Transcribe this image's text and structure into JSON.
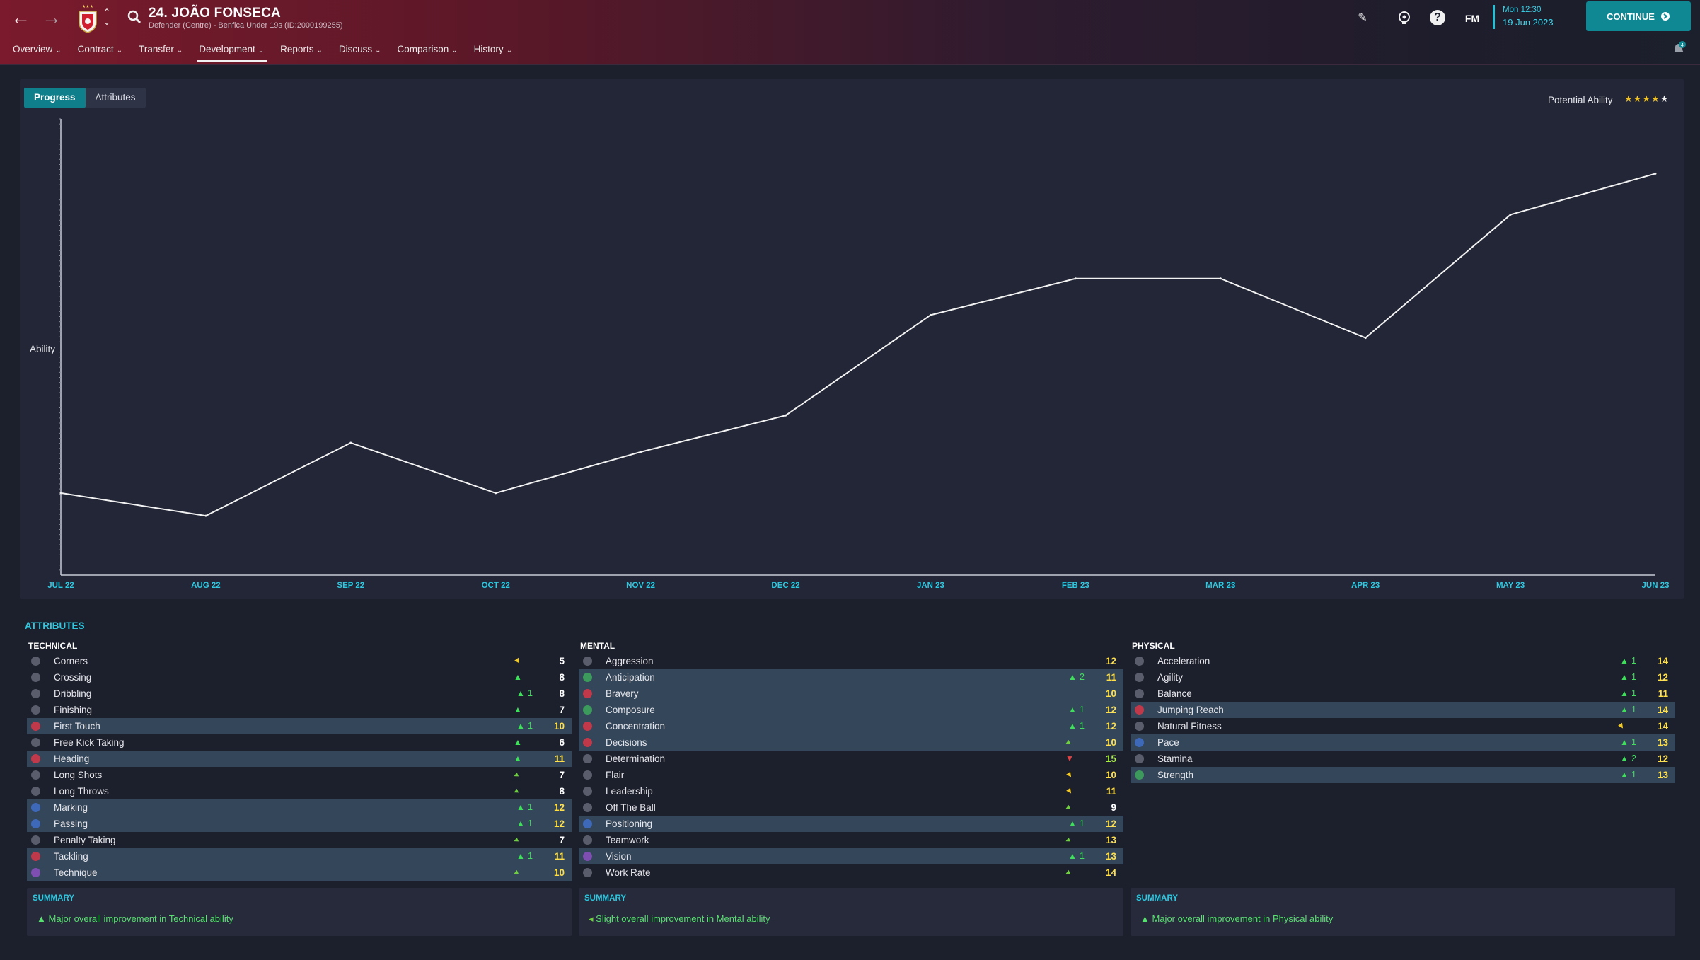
{
  "header": {
    "player_name": "24. JOÃO FONSECA",
    "player_sub": "Defender (Centre) - Benfica Under 19s (ID:2000199255)",
    "tabs": [
      {
        "label": "Overview"
      },
      {
        "label": "Contract"
      },
      {
        "label": "Transfer"
      },
      {
        "label": "Development"
      },
      {
        "label": "Reports"
      },
      {
        "label": "Discuss"
      },
      {
        "label": "Comparison"
      },
      {
        "label": "History"
      }
    ],
    "active_tab": "Development",
    "fm_logo": "FM",
    "date_time": "Mon 12:30",
    "date_date": "19 Jun 2023",
    "continue_label": "CONTINUE",
    "notifications": "4",
    "accent": "#0f8894"
  },
  "development": {
    "seg_progress": "Progress",
    "seg_attributes": "Attributes",
    "potential_label": "Potential Ability",
    "potential_stars": 4.5
  },
  "chart_data": {
    "type": "line",
    "ylabel": "Ability",
    "xlabel": "",
    "categories": [
      "JUL 22",
      "AUG 22",
      "SEP 22",
      "OCT 22",
      "NOV 22",
      "DEC 22",
      "JAN 23",
      "FEB 23",
      "MAR 23",
      "APR 23",
      "MAY 23",
      "JUN 23"
    ],
    "series": [
      {
        "values": [
          18,
          13,
          29,
          18,
          27,
          35,
          57,
          65,
          65,
          52,
          79,
          88
        ]
      }
    ],
    "ylim": [
      0,
      100
    ],
    "grid": false
  },
  "attributes": {
    "title": "ATTRIBUTES",
    "summary_title": "SUMMARY",
    "technical": {
      "title": "TECHNICAL",
      "summary": "Major overall improvement in Technical ability",
      "items": [
        {
          "name": "Corners",
          "icon": "grey",
          "arrow": "down",
          "change": "",
          "value": "5",
          "vcolor": "w",
          "hl": false
        },
        {
          "name": "Crossing",
          "icon": "grey",
          "arrow": "up",
          "change": "",
          "value": "8",
          "vcolor": "w",
          "hl": false
        },
        {
          "name": "Dribbling",
          "icon": "grey",
          "arrow": "up",
          "change": "1",
          "value": "8",
          "vcolor": "w",
          "hl": false
        },
        {
          "name": "Finishing",
          "icon": "grey",
          "arrow": "up",
          "change": "",
          "value": "7",
          "vcolor": "w",
          "hl": false
        },
        {
          "name": "First Touch",
          "icon": "red",
          "arrow": "up",
          "change": "1",
          "value": "10",
          "vcolor": "y",
          "hl": true
        },
        {
          "name": "Free Kick Taking",
          "icon": "grey",
          "arrow": "up",
          "change": "",
          "value": "6",
          "vcolor": "w",
          "hl": false
        },
        {
          "name": "Heading",
          "icon": "red",
          "arrow": "up",
          "change": "",
          "value": "11",
          "vcolor": "y",
          "hl": true
        },
        {
          "name": "Long Shots",
          "icon": "grey",
          "arrow": "right",
          "change": "",
          "value": "7",
          "vcolor": "w",
          "hl": false
        },
        {
          "name": "Long Throws",
          "icon": "grey",
          "arrow": "right",
          "change": "",
          "value": "8",
          "vcolor": "w",
          "hl": false
        },
        {
          "name": "Marking",
          "icon": "blue",
          "arrow": "up",
          "change": "1",
          "value": "12",
          "vcolor": "y",
          "hl": true
        },
        {
          "name": "Passing",
          "icon": "blue",
          "arrow": "up",
          "change": "1",
          "value": "12",
          "vcolor": "y",
          "hl": true
        },
        {
          "name": "Penalty Taking",
          "icon": "grey",
          "arrow": "right",
          "change": "",
          "value": "7",
          "vcolor": "w",
          "hl": false
        },
        {
          "name": "Tackling",
          "icon": "red",
          "arrow": "up",
          "change": "1",
          "value": "11",
          "vcolor": "y",
          "hl": true
        },
        {
          "name": "Technique",
          "icon": "purple",
          "arrow": "right",
          "change": "",
          "value": "10",
          "vcolor": "y",
          "hl": true
        }
      ]
    },
    "mental": {
      "title": "MENTAL",
      "summary": "Slight overall improvement in Mental ability",
      "items": [
        {
          "name": "Aggression",
          "icon": "grey",
          "arrow": "",
          "change": "",
          "value": "12",
          "vcolor": "y",
          "hl": false
        },
        {
          "name": "Anticipation",
          "icon": "green",
          "arrow": "up",
          "change": "2",
          "value": "11",
          "vcolor": "y",
          "hl": true
        },
        {
          "name": "Bravery",
          "icon": "red",
          "arrow": "",
          "change": "",
          "value": "10",
          "vcolor": "y",
          "hl": true
        },
        {
          "name": "Composure",
          "icon": "green",
          "arrow": "up",
          "change": "1",
          "value": "12",
          "vcolor": "y",
          "hl": true
        },
        {
          "name": "Concentration",
          "icon": "red",
          "arrow": "up",
          "change": "1",
          "value": "12",
          "vcolor": "y",
          "hl": true
        },
        {
          "name": "Decisions",
          "icon": "red",
          "arrow": "right",
          "change": "",
          "value": "10",
          "vcolor": "y",
          "hl": true
        },
        {
          "name": "Determination",
          "icon": "grey",
          "arrow": "dn2",
          "change": "",
          "value": "15",
          "vcolor": "g",
          "hl": false
        },
        {
          "name": "Flair",
          "icon": "grey",
          "arrow": "down",
          "change": "",
          "value": "10",
          "vcolor": "y",
          "hl": false
        },
        {
          "name": "Leadership",
          "icon": "grey",
          "arrow": "down",
          "change": "",
          "value": "11",
          "vcolor": "y",
          "hl": false
        },
        {
          "name": "Off The Ball",
          "icon": "grey",
          "arrow": "right",
          "change": "",
          "value": "9",
          "vcolor": "w",
          "hl": false
        },
        {
          "name": "Positioning",
          "icon": "blue",
          "arrow": "up",
          "change": "1",
          "value": "12",
          "vcolor": "y",
          "hl": true
        },
        {
          "name": "Teamwork",
          "icon": "grey",
          "arrow": "right",
          "change": "",
          "value": "13",
          "vcolor": "y",
          "hl": false
        },
        {
          "name": "Vision",
          "icon": "purple",
          "arrow": "up",
          "change": "1",
          "value": "13",
          "vcolor": "y",
          "hl": true
        },
        {
          "name": "Work Rate",
          "icon": "grey",
          "arrow": "right",
          "change": "",
          "value": "14",
          "vcolor": "y",
          "hl": false
        }
      ]
    },
    "physical": {
      "title": "PHYSICAL",
      "summary": "Major overall improvement in Physical ability",
      "items": [
        {
          "name": "Acceleration",
          "icon": "grey",
          "arrow": "up",
          "change": "1",
          "value": "14",
          "vcolor": "y",
          "hl": false
        },
        {
          "name": "Agility",
          "icon": "grey",
          "arrow": "up",
          "change": "1",
          "value": "12",
          "vcolor": "y",
          "hl": false
        },
        {
          "name": "Balance",
          "icon": "grey",
          "arrow": "up",
          "change": "1",
          "value": "11",
          "vcolor": "y",
          "hl": false
        },
        {
          "name": "Jumping Reach",
          "icon": "red",
          "arrow": "up",
          "change": "1",
          "value": "14",
          "vcolor": "y",
          "hl": true
        },
        {
          "name": "Natural Fitness",
          "icon": "grey",
          "arrow": "down",
          "change": "",
          "value": "14",
          "vcolor": "y",
          "hl": false
        },
        {
          "name": "Pace",
          "icon": "blue",
          "arrow": "up",
          "change": "1",
          "value": "13",
          "vcolor": "y",
          "hl": true
        },
        {
          "name": "Stamina",
          "icon": "grey",
          "arrow": "up",
          "change": "2",
          "value": "12",
          "vcolor": "y",
          "hl": false
        },
        {
          "name": "Strength",
          "icon": "green",
          "arrow": "up",
          "change": "1",
          "value": "13",
          "vcolor": "y",
          "hl": true
        }
      ]
    }
  }
}
